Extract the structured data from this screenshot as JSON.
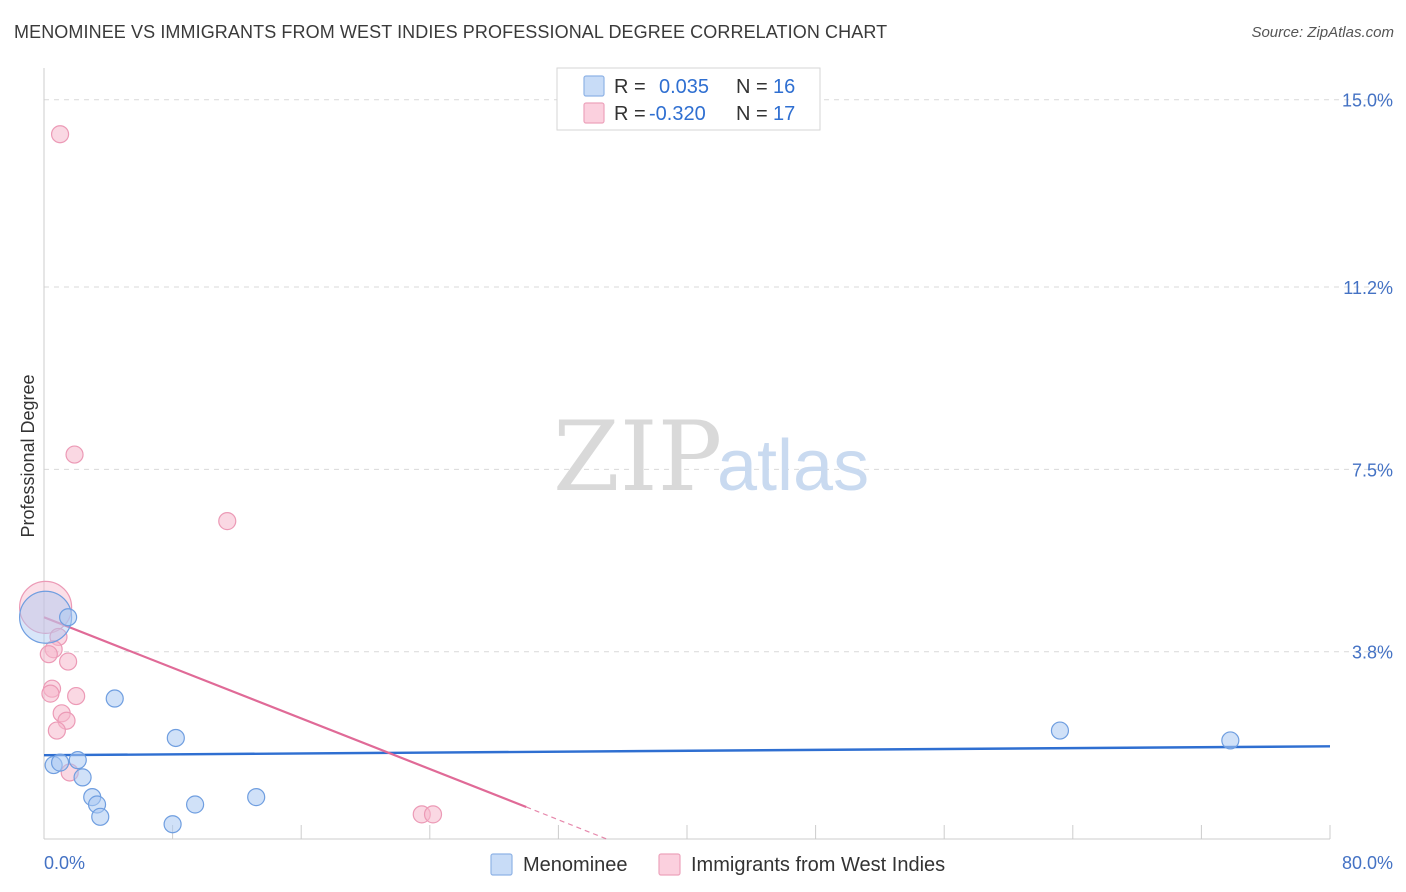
{
  "title": "MENOMINEE VS IMMIGRANTS FROM WEST INDIES PROFESSIONAL DEGREE CORRELATION CHART",
  "source": "Source: ZipAtlas.com",
  "watermark": {
    "zip": "ZIP",
    "atlas": "atlas"
  },
  "colors": {
    "blue": "#2f6fd1",
    "blue_fill": "#a9c8f2",
    "pink": "#e06a97",
    "pink_fill": "#f6b8cc",
    "grid": "#d9d9d9",
    "axis_text": "#4472c4"
  },
  "legend": {
    "r_label": "R =",
    "n_label": "N =",
    "rows": [
      {
        "r": "0.035",
        "n": "16"
      },
      {
        "r": "-0.320",
        "n": "17"
      }
    ]
  },
  "chart_data": {
    "type": "scatter",
    "title": "MENOMINEE VS IMMIGRANTS FROM WEST INDIES PROFESSIONAL DEGREE CORRELATION CHART",
    "xlabel": "",
    "ylabel": "Professional Degree",
    "xlim": [
      0,
      80
    ],
    "ylim": [
      0,
      15
    ],
    "x_tick_labels": [
      "0.0%",
      "80.0%"
    ],
    "y_ticks": [
      3.8,
      7.5,
      11.2,
      15.0
    ],
    "y_tick_labels": [
      "3.8%",
      "7.5%",
      "11.2%",
      "15.0%"
    ],
    "grid": true,
    "legend_position": "top-center",
    "series": [
      {
        "name": "Menominee",
        "points": [
          {
            "x": 0.1,
            "y": 4.5,
            "big": true
          },
          {
            "x": 1.5,
            "y": 4.5
          },
          {
            "x": 0.6,
            "y": 1.5
          },
          {
            "x": 1.0,
            "y": 1.55
          },
          {
            "x": 2.1,
            "y": 1.6
          },
          {
            "x": 2.4,
            "y": 1.25
          },
          {
            "x": 3.0,
            "y": 0.85
          },
          {
            "x": 3.3,
            "y": 0.7
          },
          {
            "x": 3.5,
            "y": 0.45
          },
          {
            "x": 4.4,
            "y": 2.85
          },
          {
            "x": 8.2,
            "y": 2.05
          },
          {
            "x": 8.0,
            "y": 0.3
          },
          {
            "x": 9.4,
            "y": 0.7
          },
          {
            "x": 13.2,
            "y": 0.85
          },
          {
            "x": 63.2,
            "y": 2.2
          },
          {
            "x": 73.8,
            "y": 2.0
          }
        ],
        "trend": {
          "x": [
            0,
            80
          ],
          "y": [
            1.7,
            1.88
          ]
        }
      },
      {
        "name": "Immigrants from West Indies",
        "points": [
          {
            "x": 0.1,
            "y": 4.7,
            "big": true
          },
          {
            "x": 1.0,
            "y": 14.3
          },
          {
            "x": 1.9,
            "y": 7.8
          },
          {
            "x": 11.4,
            "y": 6.45
          },
          {
            "x": 0.9,
            "y": 4.1
          },
          {
            "x": 0.6,
            "y": 3.85
          },
          {
            "x": 0.3,
            "y": 3.75
          },
          {
            "x": 1.5,
            "y": 3.6
          },
          {
            "x": 0.5,
            "y": 3.05
          },
          {
            "x": 0.4,
            "y": 2.95
          },
          {
            "x": 2.0,
            "y": 2.9
          },
          {
            "x": 1.1,
            "y": 2.55
          },
          {
            "x": 1.4,
            "y": 2.4
          },
          {
            "x": 0.8,
            "y": 2.2
          },
          {
            "x": 1.6,
            "y": 1.35
          },
          {
            "x": 23.5,
            "y": 0.5
          },
          {
            "x": 24.2,
            "y": 0.5
          }
        ],
        "trend": {
          "x": [
            0,
            30
          ],
          "y": [
            4.5,
            0.65
          ]
        },
        "trend_extension": {
          "x": [
            30,
            35
          ],
          "y": [
            0.65,
            0.0
          ]
        }
      }
    ]
  }
}
